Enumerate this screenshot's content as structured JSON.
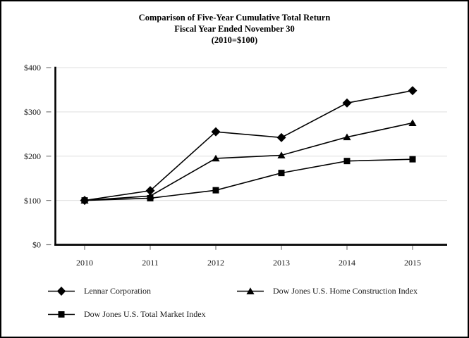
{
  "chart_data": {
    "type": "line",
    "title": "Comparison of Five-Year Cumulative Total Return",
    "subtitle": "Fiscal Year Ended November 30",
    "base_note": "(2010=$100)",
    "categories": [
      "2010",
      "2011",
      "2012",
      "2013",
      "2014",
      "2015"
    ],
    "series": [
      {
        "name": "Lennar Corporation",
        "marker": "diamond",
        "values": [
          100,
          122,
          255,
          242,
          320,
          348
        ]
      },
      {
        "name": "Dow Jones U.S. Home Construction Index",
        "marker": "triangle",
        "values": [
          100,
          110,
          195,
          202,
          243,
          275
        ]
      },
      {
        "name": "Dow Jones U.S. Total Market Index",
        "marker": "square",
        "values": [
          100,
          105,
          123,
          162,
          189,
          193
        ]
      }
    ],
    "y_ticks": [
      "$400",
      "$300",
      "$200",
      "$100",
      "$0"
    ],
    "y_tick_values": [
      400,
      300,
      200,
      100,
      0
    ],
    "ylim": [
      0,
      400
    ],
    "grid": true,
    "legend_position": "bottom",
    "colors": {
      "series": "#000000",
      "grid": "#e5e5e5",
      "tick": "#7a7a7a",
      "axis": "#000000",
      "background": "#ffffff"
    }
  }
}
